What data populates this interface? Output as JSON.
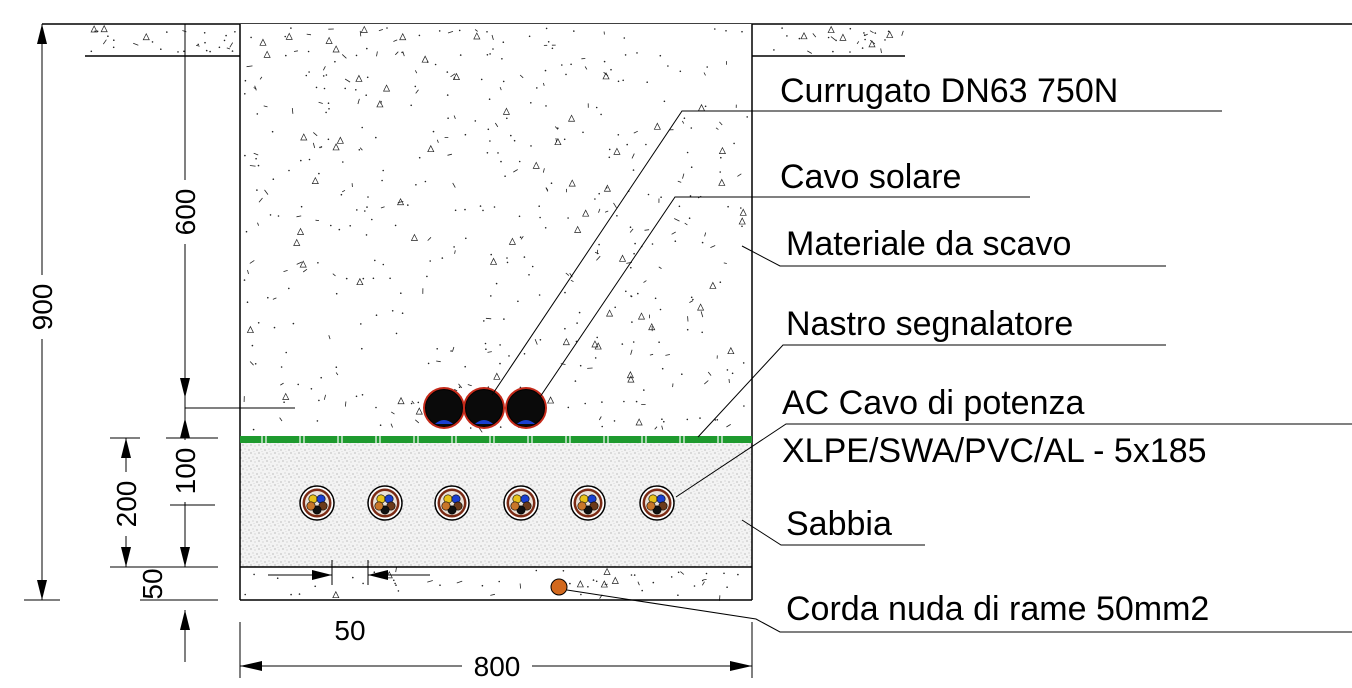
{
  "labels": {
    "corrugated": "Currugato DN63 750N",
    "solar_cable": "Cavo solare",
    "excavation": "Materiale da scavo",
    "warning_tape": "Nastro segnalatore",
    "power_cable_1": "AC Cavo di potenza",
    "power_cable_2": "XLPE/SWA/PVC/AL - 5x185",
    "sand": "Sabbia",
    "copper": "Corda nuda di rame 50mm2"
  },
  "dimensions": {
    "total_depth": "900",
    "fill_depth": "600",
    "tape_gap": "100",
    "sand_zone": "200",
    "bottom": "50",
    "cable_spacing": "50",
    "trench_width": "800"
  },
  "colors": {
    "tape": "#1e9a2e",
    "conduit": "#0a0a0a",
    "conduit_ring": "#c42a1a",
    "cable_blue": "#1a3fd0",
    "copper": "#d2691e"
  }
}
